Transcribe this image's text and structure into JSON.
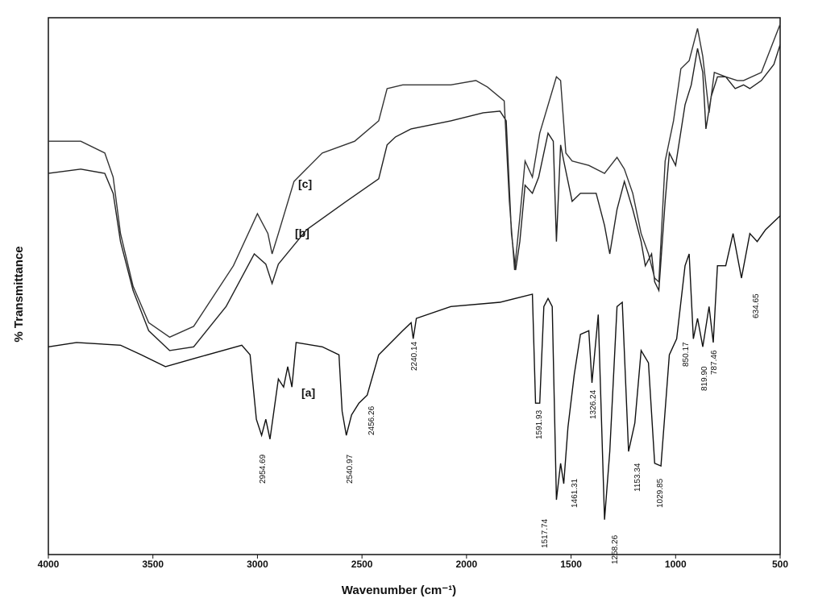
{
  "chart_data": {
    "type": "line",
    "x_label": "Wavenumber (cm⁻¹)",
    "y_label": "% Transmittance",
    "xlim": [
      4000,
      500
    ],
    "xticks": [
      4000,
      3500,
      3000,
      2500,
      2000,
      1500,
      1000,
      500
    ],
    "ylim": [
      0,
      100
    ],
    "series": [
      {
        "name": "[a]",
        "color": "#111111",
        "x": [
          4000,
          3865,
          3655,
          3555,
          3440,
          3305,
          3075,
          3035,
          3005,
          2980,
          2960,
          2940,
          2900,
          2875,
          2855,
          2835,
          2815,
          2690,
          2610,
          2595,
          2575,
          2550,
          2515,
          2475,
          2420,
          2305,
          2265,
          2255,
          2240,
          2075,
          1840,
          1685,
          1670,
          1650,
          1630,
          1610,
          1590,
          1570,
          1550,
          1535,
          1515,
          1485,
          1455,
          1415,
          1400,
          1370,
          1340,
          1315,
          1280,
          1255,
          1225,
          1195,
          1165,
          1130,
          1100,
          1070,
          1030,
          995,
          955,
          935,
          915,
          895,
          870,
          840,
          820,
          800,
          760,
          725,
          685,
          645,
          610,
          570,
          530,
          500
        ],
        "values": [
          38.7,
          39.5,
          39.0,
          37.2,
          35.0,
          36.5,
          39.0,
          37.2,
          25.2,
          22.2,
          25.2,
          21.5,
          32.7,
          31.2,
          35.0,
          31.2,
          39.5,
          38.7,
          37.2,
          26.7,
          22.2,
          26.0,
          28.2,
          29.7,
          37.2,
          41.7,
          43.2,
          40.2,
          44.0,
          46.2,
          47.0,
          48.5,
          28.2,
          28.2,
          46.2,
          47.7,
          46.2,
          10.2,
          17.0,
          13.2,
          23.7,
          33.5,
          41.0,
          41.7,
          32.0,
          44.7,
          6.5,
          19.2,
          46.2,
          47.0,
          19.2,
          24.5,
          38.0,
          35.7,
          17.0,
          16.5,
          37.2,
          40.2,
          53.8,
          56.0,
          40.2,
          44.0,
          38.7,
          46.2,
          39.5,
          53.8,
          53.8,
          59.8,
          51.5,
          59.8,
          58.3,
          60.5,
          62.0,
          63.1
        ]
      },
      {
        "name": "[b]",
        "color": "#222222",
        "x": [
          4000,
          3845,
          3730,
          3690,
          3655,
          3595,
          3520,
          3420,
          3305,
          3150,
          3015,
          2960,
          2930,
          2900,
          2765,
          2575,
          2420,
          2380,
          2340,
          2265,
          2075,
          1920,
          1840,
          1810,
          1785,
          1765,
          1745,
          1720,
          1685,
          1655,
          1610,
          1585,
          1570,
          1550,
          1535,
          1495,
          1455,
          1380,
          1340,
          1315,
          1280,
          1245,
          1205,
          1165,
          1145,
          1115,
          1100,
          1080,
          1050,
          1030,
          1000,
          955,
          925,
          895,
          870,
          855,
          830,
          800,
          760,
          715,
          675,
          645,
          590,
          530,
          500
        ],
        "values": [
          71.0,
          71.8,
          71.0,
          67.3,
          58.3,
          49.2,
          41.7,
          38.0,
          38.7,
          46.2,
          56.0,
          54.1,
          50.5,
          54.1,
          60.5,
          65.8,
          70.0,
          76.3,
          77.8,
          79.3,
          80.8,
          82.3,
          82.6,
          80.8,
          59.8,
          53.0,
          58.3,
          68.8,
          67.3,
          70.3,
          78.5,
          77.0,
          58.3,
          76.3,
          73.3,
          65.8,
          67.3,
          67.3,
          61.3,
          56.0,
          64.3,
          69.5,
          64.3,
          58.3,
          53.8,
          56.0,
          50.8,
          49.2,
          65.8,
          74.8,
          72.5,
          83.8,
          87.5,
          94.3,
          89.8,
          79.3,
          85.3,
          89.0,
          89.0,
          86.8,
          87.5,
          86.8,
          88.3,
          91.3,
          95.0
        ]
      },
      {
        "name": "[c]",
        "color": "#333333",
        "x": [
          4000,
          3845,
          3730,
          3690,
          3655,
          3595,
          3520,
          3420,
          3305,
          3115,
          3000,
          2950,
          2930,
          2900,
          2825,
          2690,
          2535,
          2420,
          2380,
          2305,
          2075,
          1955,
          1900,
          1820,
          1795,
          1770,
          1745,
          1720,
          1685,
          1650,
          1570,
          1550,
          1525,
          1495,
          1415,
          1340,
          1280,
          1245,
          1205,
          1165,
          1130,
          1100,
          1080,
          1050,
          1010,
          975,
          935,
          895,
          870,
          840,
          815,
          760,
          705,
          675,
          590,
          500
        ],
        "values": [
          77.0,
          77.0,
          74.8,
          70.3,
          59.8,
          50.0,
          43.2,
          40.5,
          42.5,
          53.8,
          63.5,
          59.8,
          56.0,
          59.8,
          69.5,
          74.8,
          77.0,
          80.8,
          86.8,
          87.5,
          87.5,
          88.3,
          87.1,
          84.5,
          65.8,
          53.0,
          62.8,
          73.3,
          70.3,
          78.5,
          89.0,
          88.3,
          74.8,
          73.3,
          72.5,
          71.0,
          74.0,
          71.8,
          67.3,
          59.8,
          56.0,
          51.5,
          50.8,
          73.3,
          80.8,
          90.5,
          92.0,
          98.0,
          92.8,
          82.3,
          89.8,
          89.0,
          88.3,
          88.3,
          89.8,
          98.8
        ]
      }
    ],
    "peak_labels": [
      "2954.69",
      "2540.97",
      "2456.26",
      "2240.14",
      "1591.93",
      "1517.74",
      "1461.31",
      "1326.24",
      "1258.26",
      "1153.34",
      "1029.85",
      "850.17",
      "819.90",
      "787.46",
      "634.65"
    ]
  }
}
